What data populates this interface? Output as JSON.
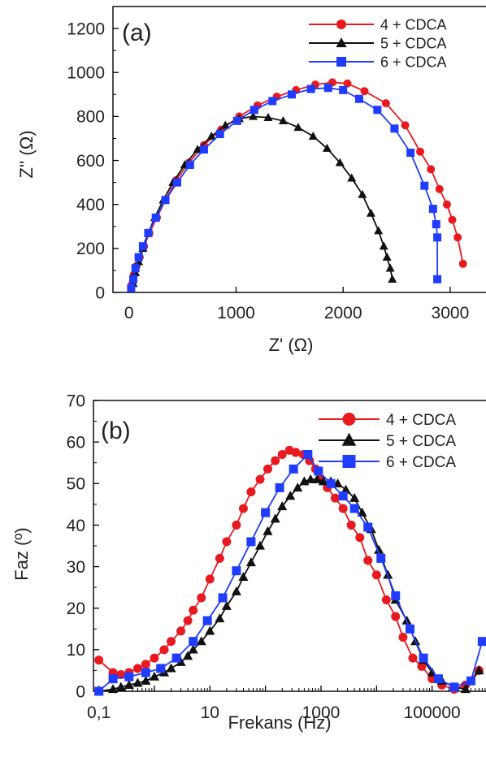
{
  "chart_data": [
    {
      "type": "scatter",
      "panel_label": "(a)",
      "xlabel": "Z' (Ω)",
      "ylabel": "Z'' (Ω)",
      "xlim": [
        -150,
        3350
      ],
      "ylim": [
        0,
        1300
      ],
      "x_ticks": [
        0,
        1000,
        2000,
        3000
      ],
      "x_tick_labels": [
        "0",
        "1000",
        "2000",
        "3000"
      ],
      "y_ticks": [
        0,
        200,
        400,
        600,
        800,
        1000,
        1200
      ],
      "y_tick_labels": [
        "0",
        "200",
        "400",
        "600",
        "800",
        "1000",
        "1200"
      ],
      "legend_position": "top-right",
      "series": [
        {
          "name": "4 + CDCA",
          "color": "#e8191f",
          "marker": "circle",
          "x": [
            30,
            45,
            70,
            100,
            140,
            190,
            260,
            340,
            440,
            560,
            700,
            860,
            1030,
            1200,
            1380,
            1560,
            1740,
            1900,
            2040,
            2200,
            2400,
            2580,
            2720,
            2820,
            2900,
            2970,
            3020,
            3070,
            3120
          ],
          "y": [
            40,
            80,
            120,
            160,
            210,
            270,
            340,
            420,
            510,
            590,
            670,
            740,
            800,
            850,
            890,
            920,
            945,
            955,
            950,
            915,
            860,
            760,
            640,
            560,
            470,
            400,
            330,
            250,
            130
          ]
        },
        {
          "name": "5 + CDCA",
          "color": "#111111",
          "marker": "triangle",
          "x": [
            40,
            60,
            90,
            130,
            180,
            240,
            320,
            410,
            520,
            640,
            770,
            900,
            1030,
            1160,
            1300,
            1440,
            1580,
            1720,
            1850,
            1970,
            2080,
            2180,
            2260,
            2330,
            2380,
            2410,
            2440,
            2460
          ],
          "y": [
            40,
            90,
            140,
            200,
            270,
            340,
            420,
            500,
            580,
            650,
            710,
            760,
            790,
            800,
            795,
            780,
            750,
            710,
            655,
            590,
            520,
            445,
            360,
            280,
            210,
            160,
            110,
            60
          ]
        },
        {
          "name": "6 + CDCA",
          "color": "#1f3cff",
          "marker": "square",
          "x": [
            20,
            40,
            60,
            90,
            130,
            180,
            250,
            340,
            450,
            570,
            700,
            850,
            1010,
            1170,
            1340,
            1520,
            1700,
            1860,
            2000,
            2150,
            2320,
            2480,
            2630,
            2760,
            2840,
            2870,
            2880,
            2880
          ],
          "y": [
            20,
            60,
            110,
            160,
            210,
            270,
            340,
            420,
            500,
            580,
            650,
            720,
            780,
            830,
            870,
            900,
            925,
            930,
            920,
            880,
            830,
            745,
            635,
            485,
            380,
            310,
            250,
            60
          ]
        }
      ]
    },
    {
      "type": "line",
      "panel_label": "(b)",
      "xlabel": "Frekans (Hz)",
      "ylabel": "Faz (º)",
      "x_scale": "log",
      "xlim": [
        0.08,
        1000000
      ],
      "ylim": [
        0,
        70
      ],
      "x_ticks": [
        0.1,
        10,
        1000,
        100000
      ],
      "x_tick_labels": [
        "0,1",
        "10",
        "1000",
        "100000"
      ],
      "y_ticks": [
        0,
        10,
        20,
        30,
        40,
        50,
        60,
        70
      ],
      "y_tick_labels": [
        "0",
        "10",
        "20",
        "30",
        "40",
        "50",
        "60",
        "70"
      ],
      "legend_position": "top-right",
      "series": [
        {
          "name": "4 + CDCA",
          "color": "#e8191f",
          "marker": "circle",
          "x": [
            0.1,
            0.18,
            0.25,
            0.35,
            0.5,
            0.7,
            1,
            1.5,
            2,
            3,
            4,
            5,
            7,
            10,
            15,
            20,
            30,
            40,
            55,
            80,
            110,
            150,
            200,
            270,
            350,
            480,
            620,
            800,
            1000,
            1300,
            1800,
            2500,
            3500,
            5000,
            7000,
            10000,
            15000,
            22000,
            30000,
            45000,
            65000,
            100000,
            150000,
            250000,
            400000,
            700000
          ],
          "y": [
            7.5,
            4.5,
            4,
            4.5,
            5.5,
            6.5,
            8,
            10,
            12,
            14.5,
            17,
            19.5,
            22.5,
            27,
            32,
            36,
            40,
            44,
            48,
            51,
            53.5,
            55.5,
            57,
            58,
            57.5,
            57,
            55.5,
            53.5,
            51,
            49,
            46.5,
            44,
            40,
            37,
            31.5,
            28,
            22,
            18,
            13,
            8,
            6,
            3,
            1.5,
            0.5,
            1.5,
            5
          ]
        },
        {
          "name": "5 + CDCA",
          "color": "#111111",
          "marker": "triangle",
          "x": [
            0.1,
            0.18,
            0.25,
            0.35,
            0.5,
            0.7,
            1,
            1.5,
            2,
            3,
            4,
            5,
            7,
            10,
            15,
            20,
            30,
            40,
            55,
            80,
            110,
            150,
            200,
            280,
            380,
            500,
            650,
            850,
            1100,
            1500,
            2000,
            2800,
            4000,
            5500,
            8000,
            11000,
            16000,
            22000,
            35000,
            50000,
            70000,
            100000,
            150000,
            250000,
            400000,
            700000
          ],
          "y": [
            0,
            0.5,
            1,
            1.5,
            2,
            2.5,
            3.5,
            4.5,
            5.5,
            7,
            8.5,
            10,
            12,
            14.5,
            17.5,
            20.5,
            24,
            27.5,
            31,
            35,
            38.5,
            41.5,
            44.5,
            47,
            49,
            50.5,
            51,
            51,
            50.5,
            50.5,
            50,
            48.5,
            46.5,
            43,
            39,
            34,
            28,
            22,
            17,
            12,
            7.5,
            4.5,
            2.5,
            1,
            0.5,
            5
          ]
        },
        {
          "name": "6 + CDCA",
          "color": "#1f3cff",
          "marker": "square",
          "x": [
            0.1,
            0.18,
            0.35,
            0.7,
            1.3,
            2.5,
            5,
            9,
            17,
            30,
            55,
            100,
            180,
            320,
            580,
            900,
            1500,
            2500,
            4000,
            7000,
            12000,
            22000,
            40000,
            70000,
            130000,
            250000,
            500000,
            800000
          ],
          "y": [
            0,
            3,
            3.5,
            4.5,
            5.5,
            8,
            12,
            17,
            22.5,
            29,
            36,
            43,
            49,
            53.5,
            57,
            53,
            50,
            47,
            44,
            39.5,
            32,
            23,
            15,
            8,
            3,
            1,
            2.5,
            12
          ]
        }
      ]
    }
  ]
}
